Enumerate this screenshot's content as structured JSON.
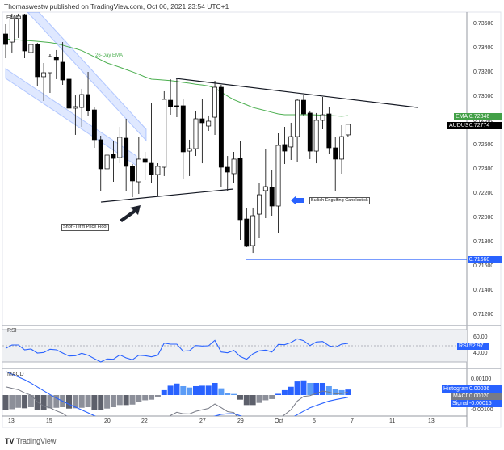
{
  "header": {
    "text": "Thomaswestw published on TradingView.com, Oct 06, 2021 23:54 UTC+1"
  },
  "footer": {
    "brand": "TradingView"
  },
  "colors": {
    "ema": "#4caf50",
    "bull": "#ffffff",
    "bear": "#000000",
    "accent": "#2962ff",
    "macd": "#787b86",
    "signal": "#2962ff",
    "hist_pos_up": "#2962ff",
    "hist_pos_down": "#5b9cf6",
    "hist_neg_down": "#5d606b",
    "hist_neg_up": "#8c8f99",
    "band": "#2962ff"
  },
  "chart_data": [
    {
      "type": "candlestick",
      "symbol": "AUDUSD",
      "pane_label": "EMA",
      "y_ticks": [
        "0.73600",
        "0.73400",
        "0.73200",
        "0.73000",
        "0.72800",
        "0.72600",
        "0.72400",
        "0.72200",
        "0.72000",
        "0.71800",
        "0.71600",
        "0.71400",
        "0.71200"
      ],
      "ylim": [
        0.711,
        0.7372
      ],
      "x_ticks": [
        "13",
        "15",
        "20",
        "22",
        "27",
        "29",
        "Oct",
        "5",
        "7",
        "11",
        "13"
      ],
      "candles": [
        [
          0.7352,
          0.736,
          0.7332,
          0.73433
        ],
        [
          0.73453,
          0.73687,
          0.73367,
          0.73647
        ],
        [
          0.73647,
          0.73687,
          0.73487,
          0.73667
        ],
        [
          0.7368,
          0.73687,
          0.7332,
          0.7338
        ],
        [
          0.73367,
          0.73467,
          0.732,
          0.73433
        ],
        [
          0.73433,
          0.73447,
          0.73087,
          0.73167
        ],
        [
          0.73167,
          0.7328,
          0.72967,
          0.732
        ],
        [
          0.732,
          0.73353,
          0.73033,
          0.73333
        ],
        [
          0.73327,
          0.73387,
          0.73147,
          0.73307
        ],
        [
          0.73287,
          0.73453,
          0.731,
          0.7314
        ],
        [
          0.73147,
          0.73227,
          0.72833,
          0.72907
        ],
        [
          0.72907,
          0.73013,
          0.72687,
          0.7292
        ],
        [
          0.72913,
          0.73067,
          0.72753,
          0.7302
        ],
        [
          0.7302,
          0.73207,
          0.72847,
          0.72887
        ],
        [
          0.72893,
          0.7292,
          0.7258,
          0.72647
        ],
        [
          0.72647,
          0.7268,
          0.7222,
          0.72407
        ],
        [
          0.72407,
          0.7262,
          0.72153,
          0.7252
        ],
        [
          0.72527,
          0.7264,
          0.723,
          0.72493
        ],
        [
          0.725,
          0.72753,
          0.72453,
          0.72667
        ],
        [
          0.7266,
          0.7282,
          0.7222,
          0.72427
        ],
        [
          0.72427,
          0.72447,
          0.72173,
          0.72307
        ],
        [
          0.723,
          0.72673,
          0.722,
          0.72487
        ],
        [
          0.72487,
          0.72547,
          0.72313,
          0.7246
        ],
        [
          0.72453,
          0.72953,
          0.72287,
          0.7236
        ],
        [
          0.7236,
          0.72453,
          0.72187,
          0.72427
        ],
        [
          0.7242,
          0.73047,
          0.72347,
          0.7298
        ],
        [
          0.72973,
          0.73147,
          0.72853,
          0.7292
        ],
        [
          0.72927,
          0.73153,
          0.72833,
          0.7292
        ],
        [
          0.72927,
          0.7298,
          0.7232,
          0.72547
        ],
        [
          0.72553,
          0.72647,
          0.72347,
          0.72573
        ],
        [
          0.72573,
          0.72887,
          0.72513,
          0.7282
        ],
        [
          0.7282,
          0.7298,
          0.72453,
          0.72787
        ],
        [
          0.7276,
          0.72847,
          0.7272,
          0.728
        ],
        [
          0.72833,
          0.73133,
          0.72687,
          0.7308
        ],
        [
          0.7308,
          0.731,
          0.72253,
          0.7242
        ],
        [
          0.7242,
          0.72513,
          0.7222,
          0.7238
        ],
        [
          0.72367,
          0.72547,
          0.72287,
          0.72487
        ],
        [
          0.72493,
          0.72633,
          0.7182,
          0.71987
        ],
        [
          0.71993,
          0.7208,
          0.7176,
          0.71767
        ],
        [
          0.71773,
          0.72087,
          0.71713,
          0.7202
        ],
        [
          0.72033,
          0.72287,
          0.71833,
          0.72193
        ],
        [
          0.72227,
          0.72567,
          0.72,
          0.7226
        ],
        [
          0.72253,
          0.724,
          0.7202,
          0.721
        ],
        [
          0.721,
          0.727,
          0.7188,
          0.726
        ],
        [
          0.72607,
          0.72753,
          0.72447,
          0.72553
        ],
        [
          0.72587,
          0.72787,
          0.7248,
          0.72673
        ],
        [
          0.72673,
          0.72987,
          0.72467,
          0.72973
        ],
        [
          0.72973,
          0.7302,
          0.72847,
          0.7286
        ],
        [
          0.72867,
          0.72887,
          0.72487,
          0.72553
        ],
        [
          0.72553,
          0.72867,
          0.72453,
          0.72807
        ],
        [
          0.72807,
          0.73,
          0.72733,
          0.72853
        ],
        [
          0.7286,
          0.7292,
          0.72533,
          0.7258
        ],
        [
          0.7258,
          0.72667,
          0.7222,
          0.72487
        ],
        [
          0.72487,
          0.72767,
          0.72367,
          0.72673
        ],
        [
          0.72687,
          0.7278,
          0.72667,
          0.72774
        ]
      ],
      "ema": [
        0.7348,
        0.73473,
        0.73471,
        0.73467,
        0.73463,
        0.73459,
        0.73454,
        0.73449,
        0.73441,
        0.73427,
        0.73412,
        0.73399,
        0.73383,
        0.73357,
        0.73331,
        0.73306,
        0.7328,
        0.73263,
        0.73245,
        0.73226,
        0.73207,
        0.73187,
        0.73165,
        0.73147,
        0.73143,
        0.73139,
        0.73135,
        0.73128,
        0.7312,
        0.73113,
        0.73105,
        0.73099,
        0.73091,
        0.73073,
        0.7304,
        0.73007,
        0.72977,
        0.72956,
        0.72935,
        0.72913,
        0.729,
        0.72887,
        0.72873,
        0.7286,
        0.72853,
        0.72853,
        0.72853,
        0.72853,
        0.72853,
        0.72852,
        0.72849,
        0.72847,
        0.72844,
        0.72841,
        0.72846
      ],
      "price_labels": {
        "ema_name": "EMA",
        "ema_value": "0.72846",
        "symbol_name": "AUDUSD",
        "last_value": "0.72774",
        "level_value": "0.71660"
      },
      "annotations": {
        "ema_label": "26-Day EMA",
        "floor_label": "Short-Term Price Floor",
        "engulfing_label": "Bullish Engulfing Candlestick",
        "resistance_line": [
          0.73153,
          0.72913
        ],
        "support_line": [
          0.72133,
          0.7224
        ],
        "level": 0.7166
      }
    },
    {
      "type": "line",
      "pane_label": "RSI",
      "ylim": [
        20,
        80
      ],
      "bands": [
        30,
        70
      ],
      "y_ticks": [
        "60.00",
        "40.00"
      ],
      "value_label": "RSI",
      "last_value": "52.97",
      "values": [
        46.7,
        51.0,
        51.0,
        45.0,
        46.0,
        41.0,
        41.7,
        45.7,
        45.0,
        41.0,
        37.3,
        37.7,
        40.7,
        38.3,
        34.0,
        30.0,
        33.7,
        33.3,
        38.7,
        35.0,
        32.7,
        38.3,
        37.7,
        36.3,
        38.3,
        53.3,
        52.0,
        52.0,
        43.3,
        44.0,
        50.3,
        49.7,
        50.0,
        56.7,
        42.3,
        41.3,
        44.3,
        36.7,
        33.3,
        40.0,
        43.7,
        44.7,
        42.3,
        51.7,
        51.3,
        54.0,
        58.7,
        56.3,
        50.3,
        54.7,
        55.3,
        50.0,
        48.3,
        52.0,
        52.97
      ]
    },
    {
      "type": "bar+line",
      "pane_label": "MACD",
      "y_ticks": [
        "0.00100",
        "-0.00100"
      ],
      "labels": {
        "histogram": "Histogram",
        "histogram_value": "0.00036",
        "macd": "MACD",
        "macd_value": "0.00020",
        "signal": "Signal",
        "signal_value": "-0.00015"
      },
      "histogram": [
        -0.001,
        -0.00092,
        -0.00083,
        -0.00086,
        -0.00079,
        -0.00097,
        -0.001,
        -0.00086,
        -0.00083,
        -0.00079,
        -0.00088,
        -0.00086,
        -0.00083,
        -0.00079,
        -0.00097,
        -0.001,
        -0.00088,
        -0.00079,
        -0.00065,
        -0.00065,
        -0.00062,
        -0.00044,
        -0.00034,
        -0.0003,
        -0.00013,
        0.00032,
        0.00061,
        0.00075,
        0.00058,
        0.00049,
        0.00058,
        0.00061,
        0.00061,
        0.00079,
        0.00044,
        0.00014,
        7e-05,
        -0.0003,
        -0.00065,
        -0.00065,
        -0.00051,
        -0.00034,
        -0.00026,
        8e-05,
        0.00032,
        0.00054,
        0.00089,
        0.00096,
        0.00079,
        0.00079,
        0.00079,
        0.00058,
        0.00037,
        0.00032,
        0.00036
      ],
      "macd": [
        0.00054,
        0.00044,
        0.00035,
        0.00014,
        -1e-05,
        -0.00044,
        -0.00072,
        -0.00083,
        -0.00103,
        -0.00119,
        -0.00148,
        -0.00164,
        -0.0018,
        -0.00195,
        -0.00232,
        -0.00253,
        -0.00253,
        -0.00255,
        -0.00251,
        -0.00259,
        -0.00262,
        -0.00248,
        -0.0024,
        -0.00236,
        -0.00217,
        -0.00168,
        -0.00133,
        -0.00112,
        -0.00122,
        -0.00123,
        -0.00106,
        -0.00096,
        -0.00087,
        -0.00058,
        -0.00082,
        -0.00108,
        -0.00114,
        -0.00165,
        -0.00215,
        -0.00225,
        -0.00218,
        -0.00204,
        -0.00196,
        -0.00159,
        -0.00128,
        -0.00096,
        -0.00039,
        -9e-05,
        -4e-05,
        0.00011,
        0.00026,
        0.00019,
        7e-05,
        0.0001,
        0.0002
      ],
      "signal": [
        0.00154,
        0.00136,
        0.00118,
        0.001,
        0.00078,
        0.00053,
        0.00028,
        3e-05,
        -0.0002,
        -0.0004,
        -0.0006,
        -0.00078,
        -0.00097,
        -0.00116,
        -0.00135,
        -0.00153,
        -0.00165,
        -0.00176,
        -0.00186,
        -0.00194,
        -0.002,
        -0.00204,
        -0.00206,
        -0.00206,
        -0.00204,
        -0.002,
        -0.00194,
        -0.00187,
        -0.0018,
        -0.00172,
        -0.00164,
        -0.00157,
        -0.00148,
        -0.00137,
        -0.00126,
        -0.00122,
        -0.00121,
        -0.00135,
        -0.0015,
        -0.0016,
        -0.00167,
        -0.0017,
        -0.0017,
        -0.00167,
        -0.0016,
        -0.0015,
        -0.00128,
        -0.00105,
        -0.00083,
        -0.00068,
        -0.00053,
        -0.00039,
        -0.0003,
        -0.00022,
        -0.00015
      ]
    }
  ]
}
